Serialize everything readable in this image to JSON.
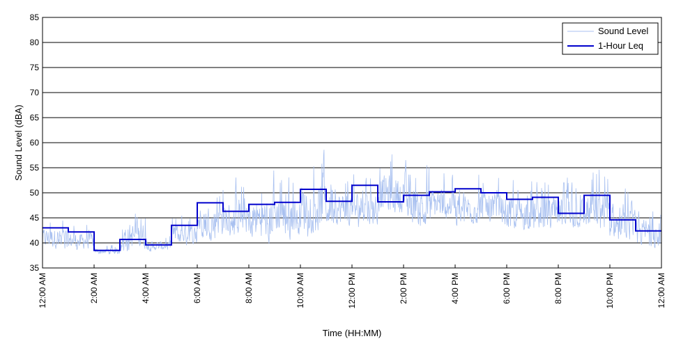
{
  "chart_data": {
    "type": "line",
    "xlabel": "Time (HH:MM)",
    "ylabel": "Sound Level (dBA)",
    "ylim": [
      35,
      85
    ],
    "yticks": [
      35,
      40,
      45,
      50,
      55,
      60,
      65,
      70,
      75,
      80,
      85
    ],
    "xlim_hours": [
      0,
      24
    ],
    "xtick_labels": [
      "12:00 AM",
      "2:00 AM",
      "4:00 AM",
      "6:00 AM",
      "8:00 AM",
      "10:00 AM",
      "12:00 PM",
      "2:00 PM",
      "4:00 PM",
      "6:00 PM",
      "8:00 PM",
      "10:00 PM",
      "12:00 AM"
    ],
    "grid": "horizontal",
    "legend_position": "top-right",
    "series": [
      {
        "name": "Sound Level",
        "color": "#a8c0f0",
        "style": "thin-noisy-line",
        "hourly_ranges": [
          [
            38,
            46.5
          ],
          [
            38,
            45
          ],
          [
            37.5,
            40
          ],
          [
            37.5,
            48.5
          ],
          [
            38,
            42
          ],
          [
            39,
            47
          ],
          [
            40,
            53
          ],
          [
            40,
            54
          ],
          [
            39,
            56
          ],
          [
            40,
            56
          ],
          [
            40,
            60.5
          ],
          [
            42,
            56
          ],
          [
            42,
            56
          ],
          [
            44,
            60.5
          ],
          [
            42,
            58
          ],
          [
            43,
            57
          ],
          [
            42,
            56
          ],
          [
            43,
            55
          ],
          [
            41,
            55
          ],
          [
            41,
            55
          ],
          [
            41,
            55
          ],
          [
            41,
            57
          ],
          [
            39,
            52
          ],
          [
            38,
            50
          ]
        ]
      },
      {
        "name": "1-Hour Leq",
        "color": "#0000cc",
        "style": "step",
        "values": [
          43,
          42.2,
          38.5,
          40.7,
          39.6,
          43.5,
          48,
          46.3,
          47.7,
          48.1,
          50.7,
          48.3,
          51.5,
          48.2,
          49.5,
          50.2,
          50.8,
          50.0,
          48.7,
          49.1,
          45.9,
          49.5,
          44.6,
          42.4
        ]
      }
    ]
  }
}
